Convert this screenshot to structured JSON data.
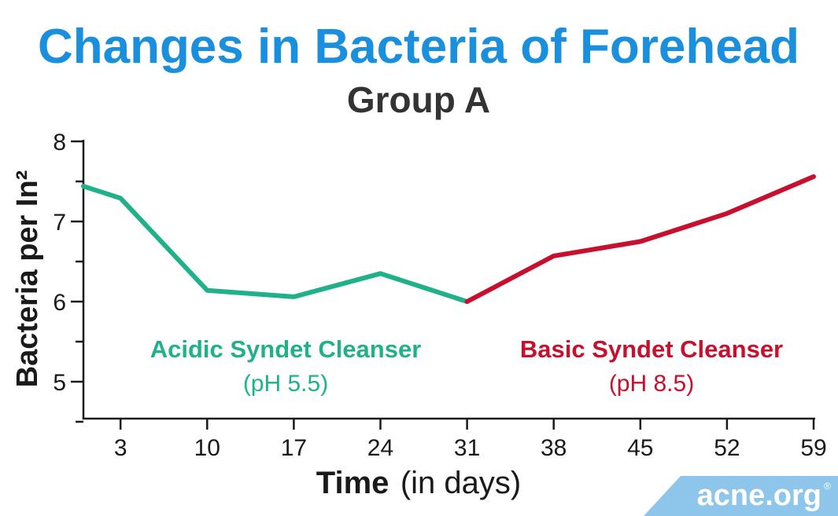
{
  "chart_data": {
    "type": "line",
    "title": "Changes in Bacteria of Forehead",
    "subtitle": "Group A",
    "xlabel_bold": "Time",
    "xlabel_rest": "(in days)",
    "ylabel": "Bacteria per In²",
    "xlim": [
      0,
      59
    ],
    "ylim": [
      4.5,
      8
    ],
    "x_ticks": [
      3,
      10,
      17,
      24,
      31,
      38,
      45,
      52,
      59
    ],
    "y_ticks": [
      5,
      6,
      7,
      8
    ],
    "grid": false,
    "series": [
      {
        "name": "Acidic Syndet Cleanser",
        "color": "#1fb28a",
        "x": [
          0,
          3,
          10,
          17,
          24,
          31
        ],
        "y": [
          7.44,
          7.29,
          6.14,
          6.06,
          6.35,
          6.0
        ]
      },
      {
        "name": "Basic Syndet Cleanser",
        "color": "#c8102e",
        "x": [
          31,
          38,
          45,
          52,
          59
        ],
        "y": [
          6.0,
          6.57,
          6.75,
          7.1,
          7.56
        ]
      }
    ],
    "annotations": [
      {
        "label": "Acidic Syndet Cleanser",
        "sub": "(pH 5.5)",
        "color": "#1fb28a"
      },
      {
        "label": "Basic Syndet Cleanser",
        "sub": "(pH 8.5)",
        "color": "#c8102e"
      }
    ]
  },
  "colors": {
    "title": "#1a8fdd",
    "subtitle": "#333333",
    "axis": "#1a1a1a",
    "brand_bg": "#8dc6ea"
  },
  "brand": {
    "text": "acne.org",
    "mark": "®"
  }
}
